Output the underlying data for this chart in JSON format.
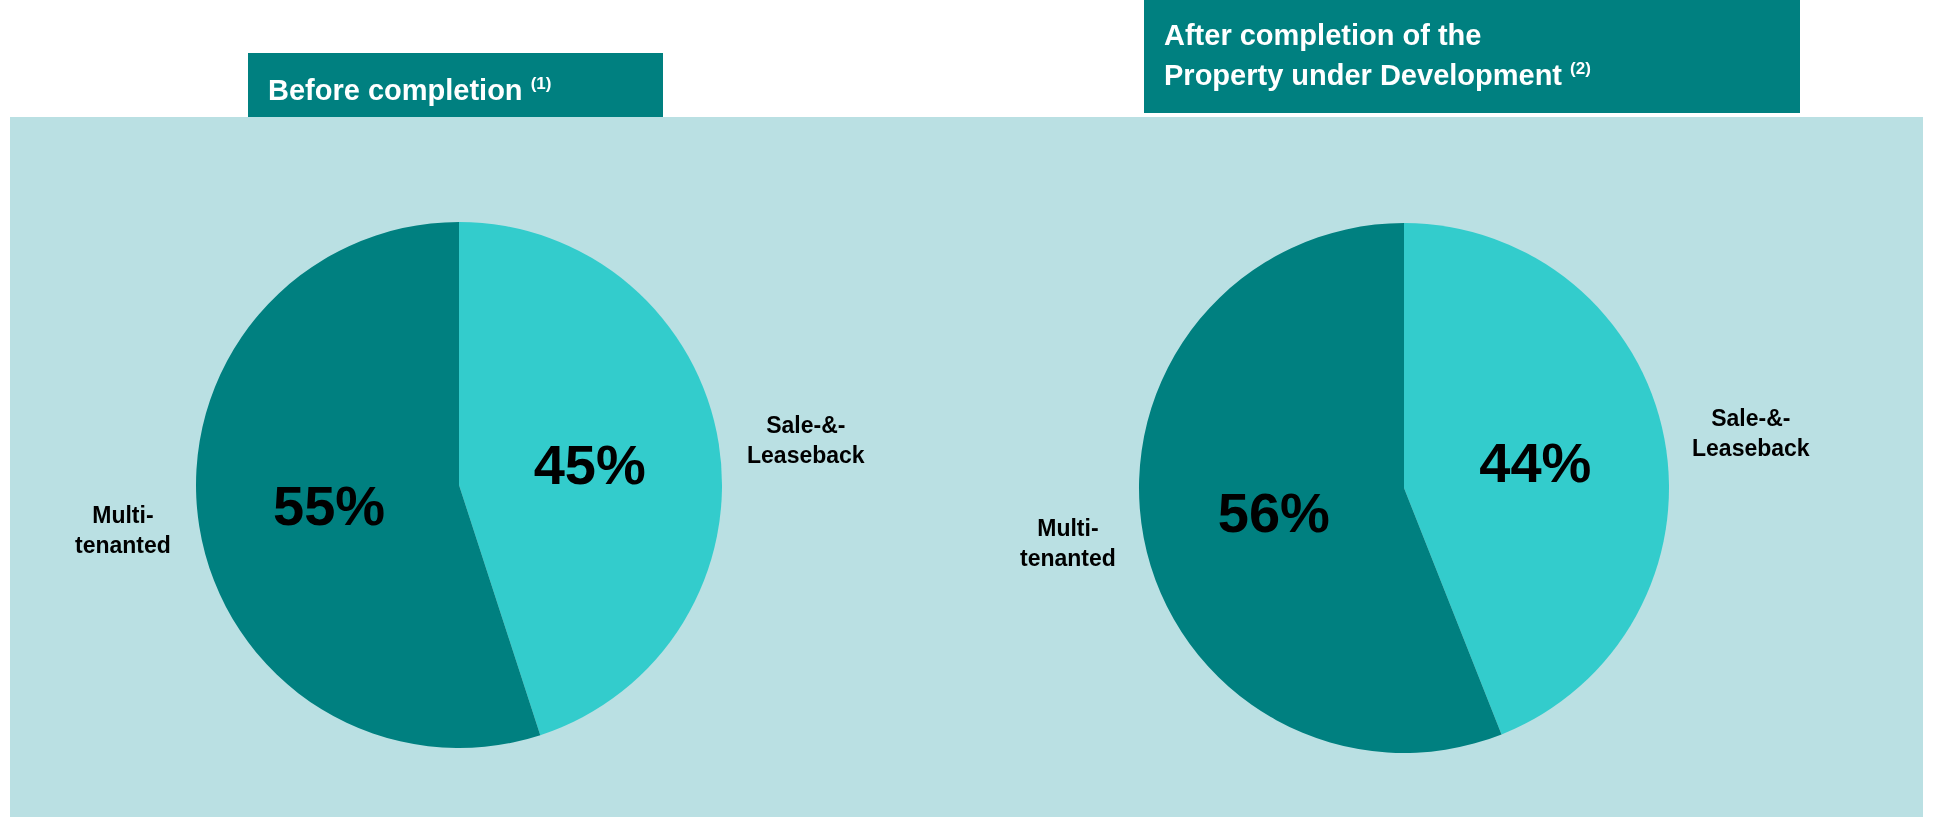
{
  "chart_data": [
    {
      "type": "pie",
      "title": "Before completion $^{(1)}$",
      "categories": [
        "Sale-&-\nLeaseback",
        "Multi-\ntenanted"
      ],
      "values": [
        45,
        55
      ],
      "value_labels": [
        "45%",
        "55%"
      ],
      "colors": [
        "#33cccc",
        "#008080"
      ],
      "legend": false
    },
    {
      "type": "pie",
      "title": "After completion of the\nProperty under Development $^{(2)}$",
      "categories": [
        "Sale-&-\nLeaseback",
        "Multi-\ntenanted"
      ],
      "values": [
        44,
        56
      ],
      "value_labels": [
        "44%",
        "56%"
      ],
      "colors": [
        "#33cccc",
        "#008080"
      ],
      "legend": false
    }
  ]
}
